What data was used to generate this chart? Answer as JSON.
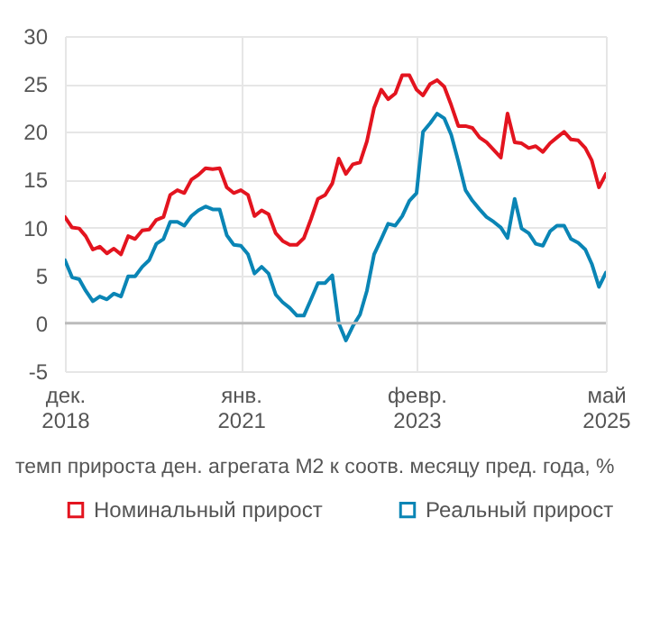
{
  "chart_data": {
    "type": "line",
    "xlabel": "темп прироста ден. агрегата М2 к соотв. месяцу пред. года, %",
    "x": [
      "2018-12",
      "2019-01",
      "2019-02",
      "2019-03",
      "2019-04",
      "2019-05",
      "2019-06",
      "2019-07",
      "2019-08",
      "2019-09",
      "2019-10",
      "2019-11",
      "2019-12",
      "2020-01",
      "2020-02",
      "2020-03",
      "2020-04",
      "2020-05",
      "2020-06",
      "2020-07",
      "2020-08",
      "2020-09",
      "2020-10",
      "2020-11",
      "2020-12",
      "2021-01",
      "2021-02",
      "2021-03",
      "2021-04",
      "2021-05",
      "2021-06",
      "2021-07",
      "2021-08",
      "2021-09",
      "2021-10",
      "2021-11",
      "2021-12",
      "2022-01",
      "2022-02",
      "2022-03",
      "2022-04",
      "2022-05",
      "2022-06",
      "2022-07",
      "2022-08",
      "2022-09",
      "2022-10",
      "2022-11",
      "2022-12",
      "2023-01",
      "2023-02",
      "2023-03",
      "2023-04",
      "2023-05",
      "2023-06",
      "2023-07",
      "2023-08",
      "2023-09",
      "2023-10",
      "2023-11",
      "2023-12",
      "2024-01",
      "2024-02",
      "2024-03",
      "2024-04",
      "2024-05",
      "2024-06",
      "2024-07",
      "2024-08",
      "2024-09",
      "2024-10",
      "2024-11",
      "2024-12",
      "2025-01",
      "2025-02",
      "2025-03",
      "2025-04",
      "2025-05"
    ],
    "series": [
      {
        "name": "Номинальный прирост",
        "color": "#e3141f",
        "values": [
          11.1,
          10,
          9.9,
          9.1,
          7.7,
          8,
          7.3,
          7.8,
          7.2,
          9.1,
          8.8,
          9.7,
          9.8,
          10.8,
          11.1,
          13.4,
          13.9,
          13.6,
          15,
          15.5,
          16.2,
          16.1,
          16.2,
          14.2,
          13.6,
          13.9,
          13.4,
          11.2,
          11.8,
          11.4,
          9.4,
          8.6,
          8.2,
          8.2,
          8.9,
          10.9,
          13,
          13.4,
          14.6,
          17.2,
          15.6,
          16.6,
          16.8,
          19,
          22.5,
          24.4,
          23.4,
          24,
          25.9,
          25.9,
          24.4,
          23.8,
          25,
          25.4,
          24.7,
          22.8,
          20.6,
          20.6,
          20.4,
          19.4,
          18.9,
          18.1,
          17.3,
          21.9,
          18.9,
          18.8,
          18.3,
          18.5,
          17.9,
          18.8,
          19.4,
          20,
          19.2,
          19.1,
          18.3,
          17,
          14.2,
          15.6
        ]
      },
      {
        "name": "Реальный прирост",
        "color": "#0a85b5",
        "values": [
          6.6,
          4.8,
          4.6,
          3.4,
          2.3,
          2.8,
          2.5,
          3.1,
          2.8,
          4.9,
          4.9,
          5.9,
          6.6,
          8.3,
          8.8,
          10.6,
          10.6,
          10.2,
          11.2,
          11.8,
          12.2,
          11.9,
          11.9,
          9.2,
          8.2,
          8.1,
          7.2,
          5.2,
          5.9,
          5.2,
          3,
          2.2,
          1.6,
          0.8,
          0.8,
          2.5,
          4.2,
          4.2,
          5,
          0,
          -1.8,
          -0.3,
          0.9,
          3.4,
          7.2,
          8.8,
          10.4,
          10.2,
          11.2,
          12.8,
          13.6,
          20,
          20.9,
          21.9,
          21.4,
          19.7,
          16.9,
          13.9,
          12.8,
          11.9,
          11.1,
          10.6,
          10,
          8.9,
          13,
          9.9,
          9.4,
          8.3,
          8.1,
          9.6,
          10.2,
          10.2,
          8.8,
          8.4,
          7.7,
          6.2,
          3.8,
          5.3
        ]
      }
    ],
    "xlim": [
      "2018-12",
      "2025-05"
    ],
    "xticks": [
      {
        "value": "2018-12",
        "label": "дек.\n2018"
      },
      {
        "value": "2021-01",
        "label": "янв.\n2021"
      },
      {
        "value": "2023-02",
        "label": "февр.\n2023"
      },
      {
        "value": "2025-05",
        "label": "май\n2025"
      }
    ],
    "ylim": [
      -5,
      30
    ],
    "yticks": [
      -5,
      0,
      5,
      10,
      15,
      20,
      25,
      30
    ],
    "ref_lines": [
      {
        "axis": "y",
        "value": 0,
        "color": "#bbbbbb"
      }
    ],
    "grid": true,
    "legend": "bottom left",
    "line_style": "solid"
  }
}
